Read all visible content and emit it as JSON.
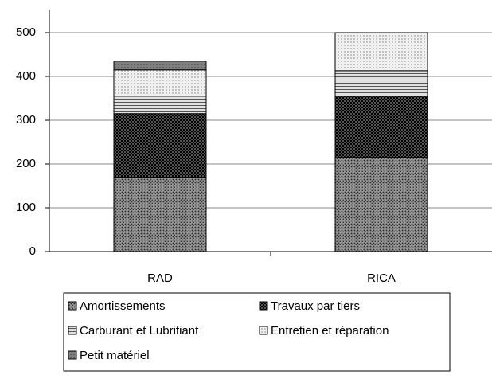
{
  "chart_data": {
    "type": "stacked_bar",
    "categories": [
      "RAD",
      "RICA"
    ],
    "series": [
      {
        "name": "Amortissements",
        "color": "#9a9a9a",
        "values": [
          170,
          215
        ]
      },
      {
        "name": "Travaux par tiers",
        "color": "#555555",
        "values": [
          145,
          140
        ]
      },
      {
        "name": "Carburant et Lubrifiant",
        "color": "#e0e0e0",
        "values": [
          40,
          58
        ]
      },
      {
        "name": "Entretien et réparation",
        "color": "#f0f0f0",
        "values": [
          60,
          87
        ]
      },
      {
        "name": "Petit matériel",
        "color": "#808080",
        "values": [
          20,
          0
        ]
      }
    ],
    "ylim": [
      0,
      500
    ],
    "yticks": [
      0,
      100,
      200,
      300,
      400,
      500
    ],
    "grid": true
  }
}
